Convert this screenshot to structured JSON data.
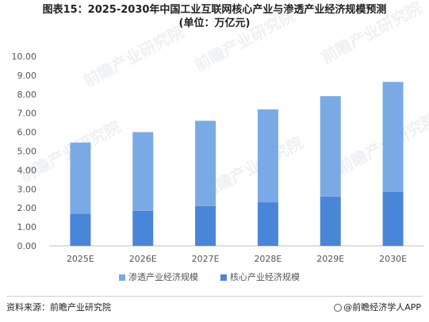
{
  "title_line1": "图表15：2025-2030年中国工业互联网核心产业与渗透产业经济规模预测",
  "title_line2": "(单位：万亿元)",
  "source": "资料来源：前瞻产业研究院",
  "credit": "@前瞻经济学人APP",
  "watermark": "前瞻产业研究院",
  "chart_data": {
    "type": "bar",
    "stacked": true,
    "categories": [
      "2025E",
      "2026E",
      "2027E",
      "2028E",
      "2029E",
      "2030E"
    ],
    "series": [
      {
        "name": "核心产业经济规模",
        "values": [
          1.7,
          1.85,
          2.1,
          2.3,
          2.6,
          2.85
        ],
        "color": "#4a86d8"
      },
      {
        "name": "渗透产业经济规模",
        "values": [
          3.75,
          4.15,
          4.5,
          4.9,
          5.3,
          5.8
        ],
        "color": "#7aaae6"
      }
    ],
    "yticks": [
      "0.00",
      "1.00",
      "2.00",
      "3.00",
      "4.00",
      "5.00",
      "6.00",
      "7.00",
      "8.00",
      "9.00",
      "10.00"
    ],
    "ylim": [
      0,
      10
    ],
    "legend": [
      "渗透产业经济规模",
      "核心产业经济规模"
    ],
    "legend_position": "bottom",
    "grid": false
  }
}
